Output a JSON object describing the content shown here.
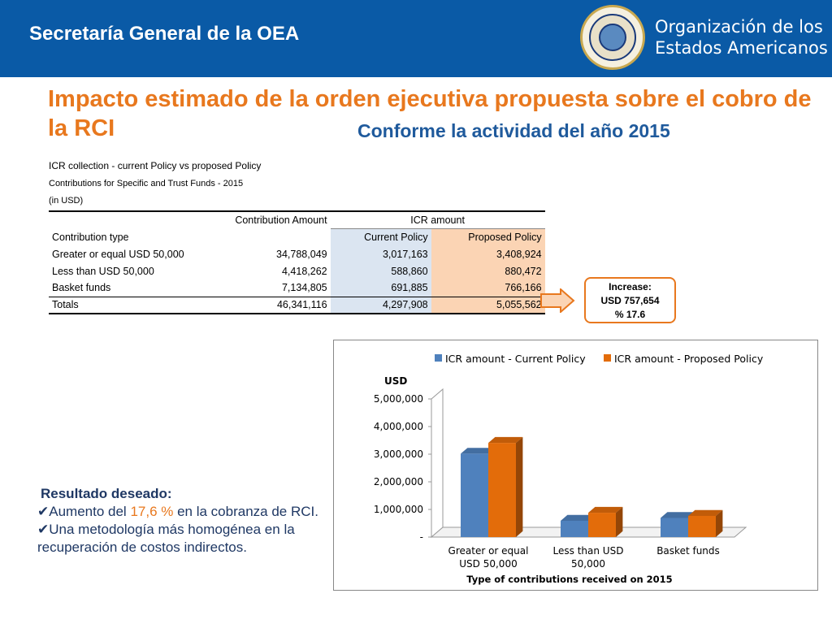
{
  "header": {
    "title": "Secretaría General de la OEA",
    "org_line1": "Organización de los",
    "org_line2": "Estados Americanos",
    "bar_color": "#0a5aa6"
  },
  "main_title": "Impacto estimado de la orden ejecutiva propuesta sobre el cobro de la RCI",
  "subtitle": "Conforme la actividad del año 2015",
  "table": {
    "title": "ICR collection -  current Policy vs proposed Policy",
    "subtitle": "Contributions for Specific and Trust Funds - 2015",
    "unit": "(in USD)",
    "group_headers": [
      "Contribution Amount",
      "ICR amount"
    ],
    "columns": [
      "Contribution type",
      "Current Policy",
      "Proposed Policy"
    ],
    "rows": [
      [
        "Greater or equal USD 50,000",
        "34,788,049",
        "3,017,163",
        "3,408,924"
      ],
      [
        "Less than USD 50,000",
        "4,418,262",
        "588,860",
        "880,472"
      ],
      [
        "Basket funds",
        "7,134,805",
        "691,885",
        "766,166"
      ]
    ],
    "totals": [
      "Totals",
      "46,341,116",
      "4,297,908",
      "5,055,562"
    ]
  },
  "increase_box": {
    "line1": "Increase:",
    "line2": "USD 757,654",
    "line3": "% 17.6"
  },
  "results": {
    "heading": "Resultado deseado:",
    "item1_pre": "Aumento del ",
    "item1_hl": "17,6 %",
    "item1_post": " en la cobranza de RCI.",
    "item2": "Una metodología más homogénea en la recuperación de costos indirectos.",
    "check_icon": "check-icon"
  },
  "chart_data": {
    "type": "bar",
    "categories": [
      "Greater or equal USD 50,000",
      "Less than USD 50,000",
      "Basket funds"
    ],
    "category_labels": [
      [
        "Greater or equal",
        "USD 50,000"
      ],
      [
        "Less than USD",
        "50,000"
      ],
      [
        "Basket funds"
      ]
    ],
    "series": [
      {
        "name": "ICR amount -  Current Policy",
        "values": [
          3017163,
          588860,
          691885
        ],
        "color": "#4f81bd"
      },
      {
        "name": "ICR amount -  Proposed Policy",
        "values": [
          3408924,
          880472,
          766166
        ],
        "color": "#e36c0a"
      }
    ],
    "ylabel": "USD",
    "xlabel": "Type of contributions  received on 2015",
    "yticks": [
      "-",
      "1,000,000",
      "2,000,000",
      "3,000,000",
      "4,000,000",
      "5,000,000"
    ],
    "ylim": [
      0,
      5000000
    ],
    "legend": "top",
    "grid": false,
    "three_d": true
  }
}
